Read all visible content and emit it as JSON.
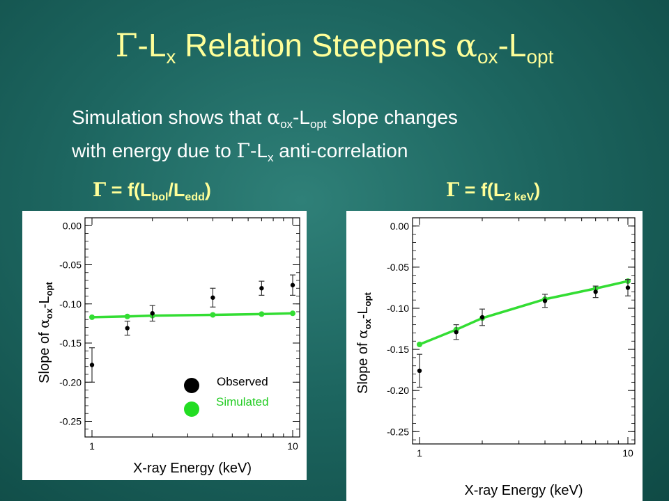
{
  "slide": {
    "title": {
      "gamma": "Γ",
      "part1": "-L",
      "sub1": "x",
      "part2": " Relation Steepens ",
      "alpha": "α",
      "sub2": "ox",
      "part3": "-L",
      "sub3": "opt"
    },
    "subtitle": {
      "line1_a": "Simulation shows that ",
      "line1_alpha": "α",
      "line1_sub1": "ox",
      "line1_b": "-L",
      "line1_sub2": "opt",
      "line1_c": " slope changes",
      "line2_a": "with energy due to ",
      "line2_gamma": "Γ",
      "line2_b": "-L",
      "line2_sub": "x",
      "line2_c": " anti-correlation"
    },
    "left_label": {
      "gamma": "Γ",
      "text": " = f(L",
      "sub1": "bol",
      "mid": "/L",
      "sub2": "edd",
      "end": ")"
    },
    "right_label": {
      "gamma": "Γ",
      "text": " = f(L",
      "sub1": "2 keV",
      "end": ")"
    }
  },
  "chart_data": [
    {
      "type": "scatter",
      "xlabel": "X-ray Energy (keV)",
      "ylabel_parts": {
        "a": "Slope of ",
        "alpha": "α",
        "sub1": "ox",
        "b": "-L",
        "sub2": "opt"
      },
      "x_scale": "log",
      "xlim": [
        1,
        10
      ],
      "ylim": [
        -0.27,
        0.01
      ],
      "x_ticks": [
        1,
        10
      ],
      "y_ticks": [
        "0.00",
        "-0.05",
        "-0.10",
        "-0.15",
        "-0.20",
        "-0.25"
      ],
      "legend": {
        "observed": "Observed",
        "simulated": "Simulated",
        "placement": "bottom-right"
      },
      "series": [
        {
          "name": "Observed",
          "color": "#000000",
          "x": [
            1.0,
            1.5,
            2.0,
            4.0,
            7.0,
            10.0
          ],
          "y": [
            -0.178,
            -0.131,
            -0.112,
            -0.092,
            -0.08,
            -0.076
          ],
          "err": [
            0.022,
            0.009,
            0.01,
            0.012,
            0.009,
            0.013
          ]
        },
        {
          "name": "Simulated",
          "color": "#33dd33",
          "x": [
            1.0,
            1.5,
            2.0,
            4.0,
            7.0,
            10.0
          ],
          "y": [
            -0.117,
            -0.116,
            -0.115,
            -0.114,
            -0.113,
            -0.112
          ]
        }
      ]
    },
    {
      "type": "scatter",
      "xlabel": "X-ray Energy (keV)",
      "ylabel_parts": {
        "a": "Slope of ",
        "alpha": "α",
        "sub1": "ox",
        "b": "-L",
        "sub2": "opt"
      },
      "x_scale": "log",
      "xlim": [
        1,
        10
      ],
      "ylim": [
        -0.265,
        0.01
      ],
      "x_ticks": [
        1,
        10
      ],
      "y_ticks": [
        "0.00",
        "-0.05",
        "-0.10",
        "-0.15",
        "-0.20",
        "-0.25"
      ],
      "series": [
        {
          "name": "Observed",
          "color": "#000000",
          "x": [
            1.0,
            1.5,
            2.0,
            4.0,
            7.0,
            10.0
          ],
          "y": [
            -0.176,
            -0.129,
            -0.111,
            -0.091,
            -0.08,
            -0.075
          ],
          "err": [
            0.02,
            0.009,
            0.01,
            0.008,
            0.007,
            0.01
          ]
        },
        {
          "name": "Simulated",
          "color": "#33dd33",
          "x": [
            1.0,
            1.5,
            2.0,
            4.0,
            7.0,
            10.0
          ],
          "y": [
            -0.144,
            -0.126,
            -0.112,
            -0.089,
            -0.076,
            -0.067
          ]
        }
      ]
    }
  ]
}
